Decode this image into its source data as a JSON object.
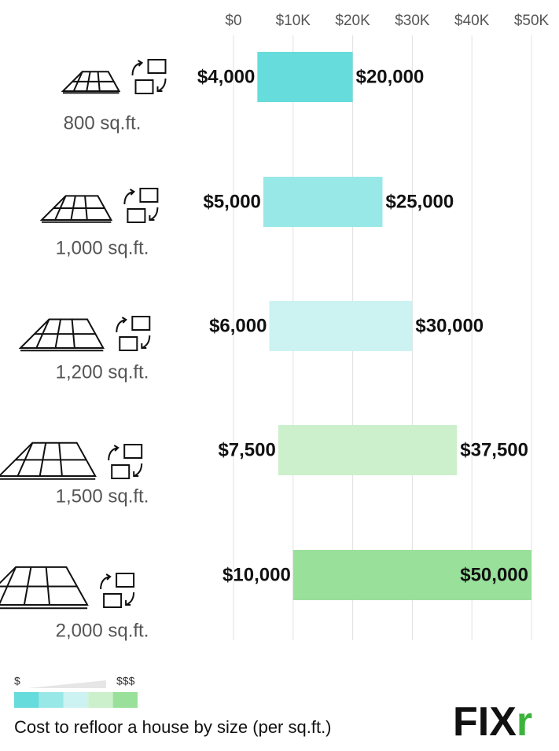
{
  "chart_data": {
    "type": "range-bar",
    "categories": [
      "800 sq.ft.",
      "1,000 sq.ft.",
      "1,200 sq.ft.",
      "1,500 sq.ft.",
      "2,000 sq.ft."
    ],
    "series": [
      {
        "values": [
          4000,
          5000,
          6000,
          7500,
          10000
        ],
        "value_labels": [
          "$4,000",
          "$5,000",
          "$6,000",
          "$7,500",
          "$10,000"
        ]
      },
      {
        "values": [
          20000,
          25000,
          30000,
          37500,
          50000
        ],
        "value_labels": [
          "$20,000",
          "$25,000",
          "$30,000",
          "$37,500",
          "$50,000"
        ]
      }
    ],
    "colors": [
      "#66dcdc",
      "#99e8e8",
      "#ccf2f2",
      "#ccf0cc",
      "#99e09a"
    ],
    "xlim": [
      0,
      50000
    ],
    "xticks": [
      {
        "value": 0,
        "label": "$0"
      },
      {
        "value": 10000,
        "label": "$10K"
      },
      {
        "value": 20000,
        "label": "$20K"
      },
      {
        "value": 30000,
        "label": "$30K"
      },
      {
        "value": 40000,
        "label": "$40K"
      },
      {
        "value": 50000,
        "label": "$50K"
      }
    ],
    "grid": true
  },
  "legend": {
    "low_label": "$",
    "high_label": "$$$",
    "colors": [
      "#66dcdc",
      "#99e8e8",
      "#ccf2f2",
      "#ccf0cc",
      "#99e09a"
    ]
  },
  "caption": "Cost to refloor a house by size (per sq.ft.)",
  "logo": [
    "FIX",
    "r"
  ]
}
